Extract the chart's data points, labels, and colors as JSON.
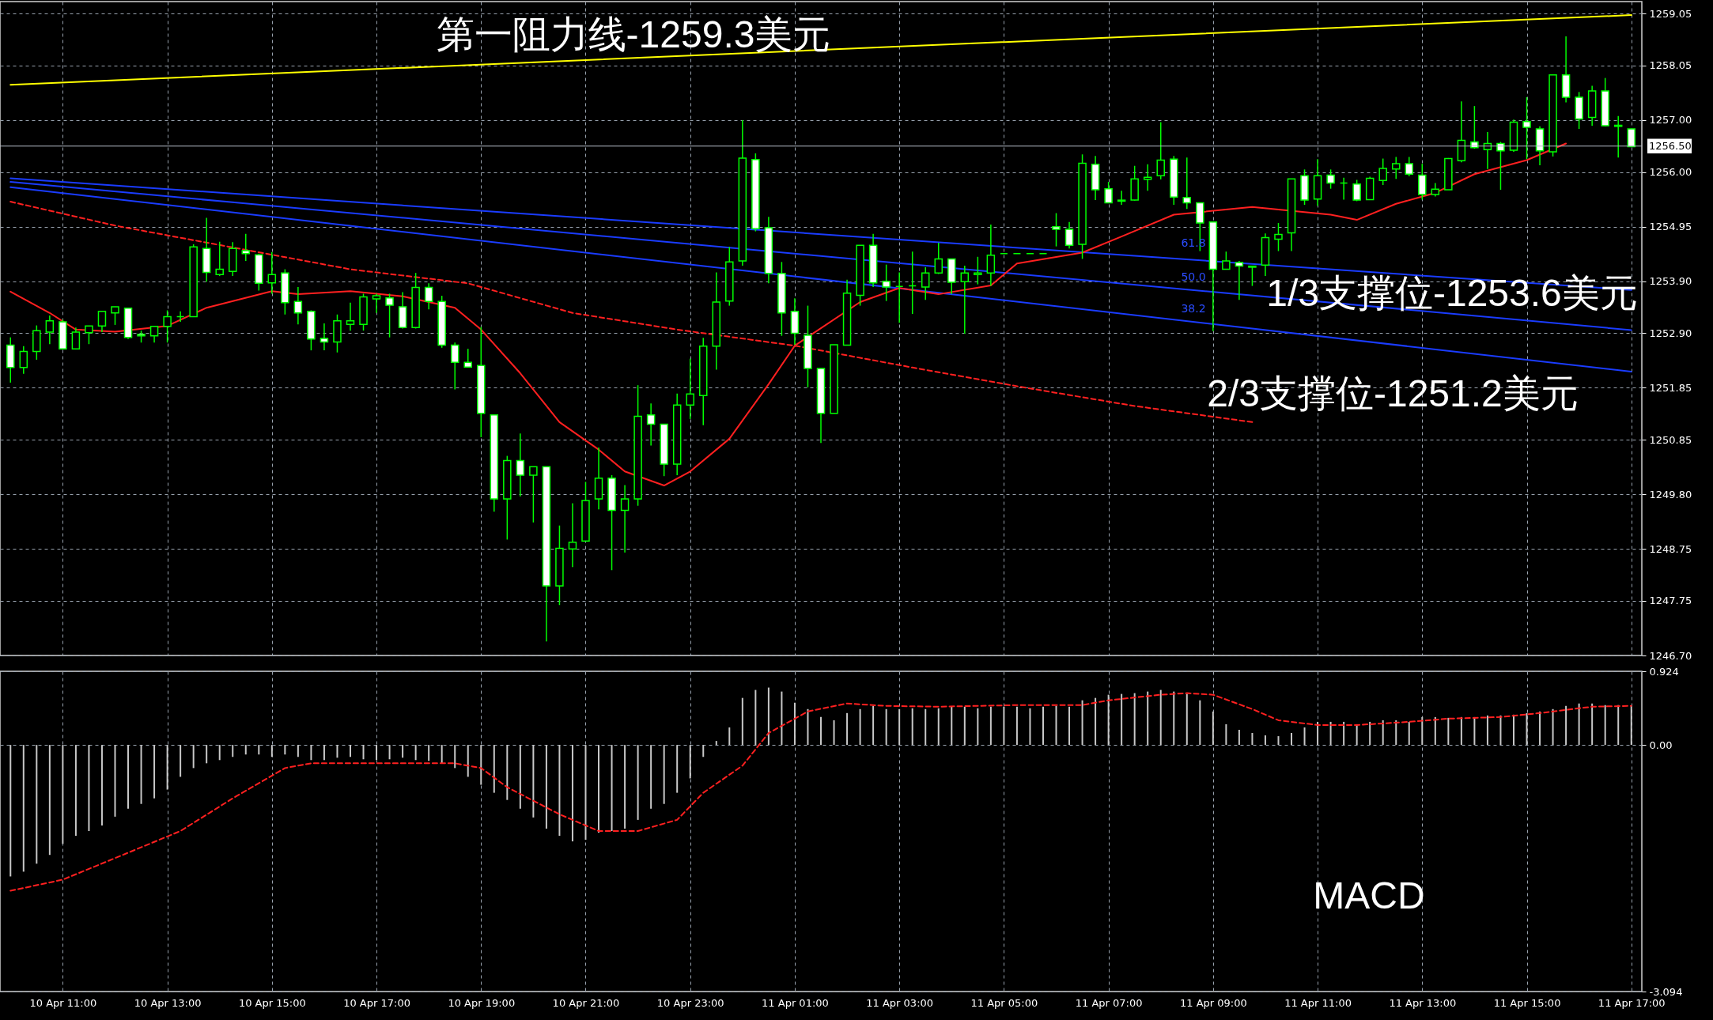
{
  "chart_data": [
    {
      "type": "candlestick",
      "categories": [
        null,
        null,
        null,
        null,
        null,
        null,
        null,
        null,
        null,
        null,
        null,
        null,
        null,
        null,
        null,
        null,
        null,
        null,
        null,
        null,
        null,
        null,
        null,
        null,
        null,
        null,
        null,
        null,
        null,
        null,
        null,
        null,
        null,
        null,
        null,
        null,
        null,
        null,
        null,
        null,
        null,
        null,
        null,
        null,
        null,
        null,
        null,
        null,
        null,
        null,
        null,
        null,
        null,
        null,
        null,
        null,
        null,
        null,
        null,
        null,
        null,
        null,
        null,
        null,
        null,
        null,
        null,
        null,
        null,
        null,
        null,
        null,
        null,
        null,
        null,
        null,
        null,
        null,
        null,
        null,
        null,
        null,
        null,
        null,
        null,
        null,
        null,
        null,
        null,
        null,
        null,
        null,
        null,
        null,
        null,
        null,
        null,
        null,
        null,
        null,
        null,
        null,
        null,
        null,
        null,
        null,
        null,
        null,
        null,
        null,
        null,
        null,
        null,
        null,
        null,
        null,
        null,
        null,
        null,
        null,
        null,
        null,
        null,
        null,
        null
      ],
      "ohlc": [
        [
          1252.67,
          1252.82,
          1251.95,
          1252.24
        ],
        [
          1252.24,
          1252.65,
          1252.12,
          1252.55
        ],
        [
          1252.55,
          1253.05,
          1252.39,
          1252.95
        ],
        [
          1252.92,
          1253.24,
          1252.69,
          1253.14
        ],
        [
          1253.12,
          1253.16,
          1252.59,
          1252.6
        ],
        [
          1252.6,
          1253.01,
          1252.59,
          1252.92
        ],
        [
          1252.91,
          1253.04,
          1252.69,
          1253.04
        ],
        [
          1253.04,
          1253.32,
          1252.92,
          1253.32
        ],
        [
          1253.29,
          1253.41,
          1253.06,
          1253.41
        ],
        [
          1253.38,
          1253.39,
          1252.79,
          1252.82
        ],
        [
          1252.88,
          1252.95,
          1252.72,
          1252.85
        ],
        [
          1252.85,
          1253.03,
          1252.72,
          1253.03
        ],
        [
          1253.03,
          1253.34,
          1252.72,
          1253.22
        ],
        [
          1253.22,
          1253.32,
          1253.12,
          1253.22
        ],
        [
          1253.22,
          1254.61,
          1253.22,
          1254.56
        ],
        [
          1254.53,
          1255.12,
          1253.89,
          1254.07
        ],
        [
          1254.03,
          1254.66,
          1254,
          1254.13
        ],
        [
          1254.09,
          1254.65,
          1254,
          1254.53
        ],
        [
          1254.49,
          1254.81,
          1254.29,
          1254.43
        ],
        [
          1254.41,
          1254.43,
          1253.72,
          1253.86
        ],
        [
          1253.87,
          1254.46,
          1253.66,
          1254.03
        ],
        [
          1254.06,
          1254.13,
          1253.26,
          1253.49
        ],
        [
          1253.51,
          1253.79,
          1253.07,
          1253.29
        ],
        [
          1253.32,
          1253.34,
          1252.57,
          1252.79
        ],
        [
          1252.8,
          1253.09,
          1252.57,
          1252.73
        ],
        [
          1252.73,
          1253.26,
          1252.53,
          1253.14
        ],
        [
          1253.07,
          1253.49,
          1252.95,
          1253.14
        ],
        [
          1253.07,
          1253.66,
          1252.95,
          1253.6
        ],
        [
          1253.56,
          1253.66,
          1253.29,
          1253.62
        ],
        [
          1253.58,
          1253.66,
          1252.82,
          1253.44
        ],
        [
          1253.41,
          1253.69,
          1252.99,
          1253.01
        ],
        [
          1253.01,
          1254.06,
          1252.99,
          1253.78
        ],
        [
          1253.78,
          1253.86,
          1253.36,
          1253.51
        ],
        [
          1253.51,
          1253.62,
          1252.62,
          1252.67
        ],
        [
          1252.67,
          1252.72,
          1251.82,
          1252.34
        ],
        [
          1252.34,
          1252.6,
          1252.25,
          1252.25
        ],
        [
          1252.28,
          1253.02,
          1250.9,
          1251.36
        ],
        [
          1251.33,
          1251.33,
          1249.47,
          1249.71
        ],
        [
          1249.71,
          1250.54,
          1248.93,
          1250.45
        ],
        [
          1250.45,
          1250.97,
          1249.76,
          1250.17
        ],
        [
          1250.17,
          1250.33,
          1249.26,
          1250.33
        ],
        [
          1250.33,
          1250.33,
          1246.97,
          1248.04
        ],
        [
          1248.04,
          1249.2,
          1247.67,
          1248.76
        ],
        [
          1248.75,
          1249.63,
          1248.4,
          1248.88
        ],
        [
          1248.9,
          1250.04,
          1248.9,
          1249.68
        ],
        [
          1249.71,
          1250.7,
          1249.51,
          1250.11
        ],
        [
          1250.11,
          1250.17,
          1248.34,
          1249.49
        ],
        [
          1249.49,
          1249.98,
          1248.68,
          1249.71
        ],
        [
          1249.71,
          1251.9,
          1249.58,
          1251.3
        ],
        [
          1251.33,
          1251.55,
          1250.74,
          1251.15
        ],
        [
          1251.15,
          1251.15,
          1250.15,
          1250.38
        ],
        [
          1250.38,
          1251.74,
          1250.17,
          1251.52
        ],
        [
          1251.52,
          1252.41,
          1251.25,
          1251.73
        ],
        [
          1251.7,
          1252.81,
          1251.13,
          1252.65
        ],
        [
          1252.65,
          1254.07,
          1252.2,
          1253.5
        ],
        [
          1253.52,
          1254.56,
          1253.43,
          1254.27
        ],
        [
          1254.29,
          1257,
          1254.2,
          1256.27
        ],
        [
          1256.24,
          1256.36,
          1254.86,
          1254.91
        ],
        [
          1254.93,
          1255.14,
          1253.86,
          1254.05
        ],
        [
          1254.05,
          1254.27,
          1252.85,
          1253.29
        ],
        [
          1253.32,
          1253.57,
          1252.68,
          1252.9
        ],
        [
          1252.86,
          1253.43,
          1251.86,
          1252.22
        ],
        [
          1252.22,
          1252.22,
          1250.79,
          1251.36
        ],
        [
          1251.36,
          1252.68,
          1251.36,
          1252.68
        ],
        [
          1252.67,
          1253.93,
          1252.67,
          1253.67
        ],
        [
          1253.63,
          1254.59,
          1253.43,
          1254.59
        ],
        [
          1254.59,
          1254.81,
          1253.79,
          1253.87
        ],
        [
          1253.9,
          1254.22,
          1253.52,
          1253.79
        ],
        [
          1253.8,
          1254.07,
          1253.1,
          1253.8
        ],
        [
          1253.81,
          1254.47,
          1253.27,
          1253.81
        ],
        [
          1253.79,
          1254.17,
          1253.54,
          1254.06
        ],
        [
          1254.06,
          1254.64,
          1254.04,
          1254.33
        ],
        [
          1254.33,
          1254.33,
          1253.65,
          1253.88
        ],
        [
          1253.89,
          1254.2,
          1252.89,
          1254.06
        ],
        [
          1254.03,
          1254.37,
          1253.84,
          1254.06
        ],
        [
          1254.06,
          1254.99,
          1253.81,
          1254.4
        ],
        [
          1254.43,
          1254.43,
          1254.43,
          1254.43
        ],
        [
          1254.43,
          1254.43,
          1254.43,
          1254.43
        ],
        [
          1254.43,
          1254.43,
          1254.43,
          1254.43
        ],
        [
          1254.43,
          1254.43,
          1254.43,
          1254.43
        ],
        [
          1254.95,
          1255.21,
          1254.57,
          1254.9
        ],
        [
          1254.9,
          1255.04,
          1254.53,
          1254.59
        ],
        [
          1254.61,
          1256.34,
          1254.33,
          1256.17
        ],
        [
          1256.15,
          1256.31,
          1255.46,
          1255.66
        ],
        [
          1255.68,
          1255.81,
          1255.4,
          1255.41
        ],
        [
          1255.44,
          1255.64,
          1255.37,
          1255.46
        ],
        [
          1255.46,
          1256.12,
          1255.45,
          1255.87
        ],
        [
          1255.86,
          1256.15,
          1255.64,
          1255.9
        ],
        [
          1255.93,
          1256.96,
          1255.86,
          1256.23
        ],
        [
          1256.25,
          1256.31,
          1255.37,
          1255.52
        ],
        [
          1255.51,
          1256.28,
          1255.29,
          1255.41
        ],
        [
          1255.41,
          1255.41,
          1254.48,
          1255.02
        ],
        [
          1255.04,
          1255.04,
          1252.94,
          1254.13
        ],
        [
          1254.13,
          1254.47,
          1254.13,
          1254.29
        ],
        [
          1254.26,
          1254.29,
          1253.54,
          1254.19
        ],
        [
          1254.19,
          1254.19,
          1253.81,
          1254.17
        ],
        [
          1254.21,
          1254.82,
          1254,
          1254.74
        ],
        [
          1254.71,
          1255.02,
          1254.48,
          1254.8
        ],
        [
          1254.83,
          1255.87,
          1254.48,
          1255.87
        ],
        [
          1255.93,
          1256.05,
          1255.37,
          1255.46
        ],
        [
          1255.48,
          1256.25,
          1255.35,
          1255.93
        ],
        [
          1255.94,
          1256.05,
          1255.68,
          1255.79
        ],
        [
          1255.79,
          1255.89,
          1255.47,
          1255.79
        ],
        [
          1255.77,
          1255.85,
          1255.44,
          1255.46
        ],
        [
          1255.47,
          1255.91,
          1255.46,
          1255.88
        ],
        [
          1255.84,
          1256.26,
          1255.75,
          1256.07
        ],
        [
          1256.06,
          1256.29,
          1255.87,
          1256.16
        ],
        [
          1256.16,
          1256.29,
          1255.92,
          1255.96
        ],
        [
          1255.94,
          1256.16,
          1255.47,
          1255.57
        ],
        [
          1255.57,
          1255.79,
          1255.53,
          1255.67
        ],
        [
          1255.66,
          1256.27,
          1255.66,
          1256.26
        ],
        [
          1256.22,
          1257.36,
          1256.19,
          1256.61
        ],
        [
          1256.58,
          1257.27,
          1256.45,
          1256.47
        ],
        [
          1256.43,
          1256.77,
          1256.06,
          1256.55
        ],
        [
          1256.55,
          1256.58,
          1255.66,
          1256.41
        ],
        [
          1256.42,
          1257.01,
          1256.39,
          1256.96
        ],
        [
          1256.97,
          1257.44,
          1256.25,
          1256.86
        ],
        [
          1256.83,
          1256.88,
          1256.13,
          1256.41
        ],
        [
          1256.39,
          1257.87,
          1256.3,
          1257.87
        ],
        [
          1257.87,
          1258.61,
          1257.34,
          1257.44
        ],
        [
          1257.44,
          1257.54,
          1256.83,
          1257.02
        ],
        [
          1257.05,
          1257.66,
          1256.89,
          1257.56
        ],
        [
          1257.56,
          1257.81,
          1256.88,
          1256.89
        ],
        [
          1256.9,
          1257.08,
          1256.28,
          1256.88
        ],
        [
          1256.83,
          1256.83,
          1256.49,
          1256.49
        ]
      ],
      "series": [
        {
          "type": "line",
          "color": "#ffff00",
          "values": [
            1257.68,
            null,
            null,
            null,
            null,
            null,
            null,
            null,
            null,
            null,
            null,
            null,
            null,
            null,
            null,
            null,
            null,
            null,
            null,
            null,
            null,
            null,
            null,
            null,
            null,
            null,
            null,
            null,
            null,
            null,
            null,
            null,
            null,
            null,
            null,
            null,
            null,
            null,
            null,
            null,
            null,
            null,
            null,
            null,
            null,
            null,
            null,
            null,
            null,
            null,
            null,
            null,
            null,
            null,
            null,
            null,
            null,
            null,
            null,
            null,
            null,
            null,
            null,
            null,
            null,
            null,
            null,
            null,
            null,
            null,
            null,
            null,
            null,
            null,
            null,
            null,
            null,
            null,
            null,
            null,
            null,
            null,
            null,
            null,
            null,
            null,
            null,
            null,
            null,
            null,
            null,
            null,
            null,
            null,
            null,
            null,
            null,
            null,
            null,
            null,
            null,
            null,
            null,
            null,
            null,
            null,
            null,
            null,
            null,
            null,
            null,
            null,
            null,
            null,
            null,
            null,
            null,
            null,
            null,
            null,
            null,
            null,
            null,
            null,
            1259.02
          ]
        },
        {
          "type": "line",
          "color": "#1a3cff",
          "values": [
            1255.88,
            null,
            null,
            null,
            null,
            null,
            null,
            null,
            null,
            null,
            null,
            null,
            null,
            null,
            null,
            null,
            null,
            null,
            null,
            null,
            null,
            null,
            null,
            null,
            null,
            null,
            null,
            null,
            null,
            null,
            null,
            null,
            null,
            null,
            null,
            null,
            null,
            null,
            null,
            null,
            null,
            null,
            null,
            null,
            null,
            null,
            null,
            null,
            null,
            null,
            null,
            null,
            null,
            null,
            null,
            null,
            null,
            null,
            null,
            null,
            null,
            null,
            null,
            null,
            null,
            null,
            null,
            null,
            null,
            null,
            null,
            null,
            null,
            null,
            null,
            null,
            null,
            null,
            null,
            null,
            null,
            null,
            null,
            null,
            null,
            null,
            null,
            null,
            null,
            null,
            null,
            null,
            null,
            null,
            null,
            null,
            null,
            null,
            null,
            null,
            null,
            null,
            null,
            null,
            null,
            null,
            null,
            null,
            null,
            null,
            null,
            null,
            null,
            null,
            null,
            null,
            null,
            null,
            null,
            null,
            null,
            null,
            null,
            null,
            1253.73
          ]
        },
        {
          "type": "line",
          "color": "#1a3cff",
          "values": [
            1255.81,
            null,
            null,
            null,
            null,
            null,
            null,
            null,
            null,
            null,
            null,
            null,
            null,
            null,
            null,
            null,
            null,
            null,
            null,
            null,
            null,
            null,
            null,
            null,
            null,
            null,
            null,
            null,
            null,
            null,
            null,
            null,
            null,
            null,
            null,
            null,
            null,
            null,
            null,
            null,
            null,
            null,
            null,
            null,
            null,
            null,
            null,
            null,
            null,
            null,
            null,
            null,
            null,
            null,
            null,
            null,
            null,
            null,
            null,
            null,
            null,
            null,
            null,
            null,
            null,
            null,
            null,
            null,
            null,
            null,
            null,
            null,
            null,
            null,
            null,
            null,
            null,
            null,
            null,
            null,
            null,
            null,
            null,
            null,
            null,
            null,
            null,
            null,
            null,
            null,
            null,
            null,
            null,
            null,
            null,
            null,
            null,
            null,
            null,
            null,
            null,
            null,
            null,
            null,
            null,
            null,
            null,
            null,
            null,
            null,
            null,
            null,
            null,
            null,
            null,
            null,
            null,
            null,
            null,
            null,
            null,
            null,
            null,
            null,
            1252.96
          ]
        },
        {
          "type": "line",
          "color": "#1a3cff",
          "values": [
            1255.71,
            null,
            null,
            null,
            null,
            null,
            null,
            null,
            null,
            null,
            null,
            null,
            null,
            null,
            null,
            null,
            null,
            null,
            null,
            null,
            null,
            null,
            null,
            null,
            null,
            null,
            null,
            null,
            null,
            null,
            null,
            null,
            null,
            null,
            null,
            null,
            null,
            null,
            null,
            null,
            null,
            null,
            null,
            null,
            null,
            null,
            null,
            null,
            null,
            null,
            null,
            null,
            null,
            null,
            null,
            null,
            null,
            null,
            null,
            null,
            null,
            null,
            null,
            null,
            null,
            null,
            null,
            null,
            null,
            null,
            null,
            null,
            null,
            null,
            null,
            null,
            null,
            null,
            null,
            null,
            null,
            null,
            null,
            null,
            null,
            null,
            null,
            null,
            null,
            null,
            null,
            null,
            null,
            null,
            null,
            null,
            null,
            null,
            null,
            null,
            null,
            null,
            null,
            null,
            null,
            null,
            null,
            null,
            null,
            null,
            null,
            null,
            null,
            null,
            null,
            null,
            null,
            null,
            null,
            null,
            null,
            null,
            null,
            null,
            1252.16
          ]
        },
        {
          "type": "line",
          "color": "#ff2020",
          "values": [
            1253.7,
            null,
            null,
            1253.29,
            null,
            1252.97,
            null,
            null,
            1252.93,
            null,
            null,
            null,
            1253.04,
            null,
            null,
            1253.39,
            null,
            null,
            null,
            null,
            1253.71,
            null,
            1253.65,
            null,
            null,
            null,
            1253.71,
            null,
            null,
            null,
            1253.61,
            null,
            null,
            null,
            1253.39,
            null,
            1252.97,
            null,
            null,
            1252.13,
            null,
            null,
            1251.19,
            null,
            null,
            1250.66,
            null,
            1250.24,
            null,
            null,
            1249.97,
            null,
            1250.24,
            null,
            null,
            1250.87,
            null,
            null,
            1251.92,
            null,
            1252.66,
            null,
            null,
            null,
            null,
            1253.5,
            null,
            null,
            1253.77,
            null,
            null,
            1253.65,
            null,
            null,
            null,
            1253.82,
            null,
            1254.24,
            null,
            null,
            null,
            null,
            1254.45,
            null,
            null,
            1254.76,
            null,
            null,
            null,
            1255.18,
            null,
            null,
            null,
            null,
            null,
            1255.33,
            null,
            null,
            null,
            null,
            null,
            1255.18,
            null,
            1255.08,
            null,
            null,
            1255.39,
            null,
            null,
            1255.6,
            null,
            null,
            1255.96,
            null,
            null,
            null,
            1256.23,
            null,
            null,
            1256.55,
            null,
            null,
            null,
            null,
            null
          ]
        },
        {
          "type": "line",
          "color": "#ff2020",
          "line_style": "dashed",
          "values": [
            1255.43,
            null,
            null,
            null,
            null,
            null,
            null,
            null,
            1254.97,
            null,
            null,
            null,
            null,
            null,
            null,
            null,
            null,
            null,
            null,
            null,
            null,
            null,
            null,
            null,
            null,
            null,
            1254.13,
            null,
            null,
            null,
            null,
            null,
            null,
            null,
            null,
            1253.86,
            null,
            null,
            null,
            null,
            null,
            null,
            null,
            1253.29,
            null,
            null,
            null,
            null,
            null,
            null,
            null,
            1252.97,
            null,
            null,
            null,
            null,
            null,
            null,
            null,
            null,
            1252.66,
            null,
            null,
            null,
            null,
            null,
            null,
            null,
            null,
            1252.24,
            null,
            null,
            null,
            null,
            null,
            null,
            null,
            1251.88,
            null,
            null,
            null,
            null,
            null,
            null,
            null,
            null,
            1251.5,
            null,
            null,
            null,
            null,
            null,
            null,
            null,
            null,
            1251.19,
            null,
            null,
            null,
            null,
            null,
            null,
            null,
            null,
            null,
            null,
            null,
            null,
            null,
            null,
            null,
            null,
            null,
            null,
            null,
            null,
            null,
            null,
            null,
            null,
            null,
            null,
            null,
            null,
            null
          ]
        }
      ],
      "ylim": [
        1246.7,
        1259.28
      ],
      "yticks": [
        {
          "value": 1259.05,
          "label": "1259.05"
        },
        {
          "value": 1258.05,
          "label": "1258.05"
        },
        {
          "value": 1257,
          "label": "1257.00"
        },
        {
          "value": 1256,
          "label": "1256.00"
        },
        {
          "value": 1254.95,
          "label": "1254.95"
        },
        {
          "value": 1253.9,
          "label": "1253.90"
        },
        {
          "value": 1252.9,
          "label": "1252.90"
        },
        {
          "value": 1251.85,
          "label": "1251.85"
        },
        {
          "value": 1250.85,
          "label": "1250.85"
        },
        {
          "value": 1249.8,
          "label": "1249.80"
        },
        {
          "value": 1248.75,
          "label": "1248.75"
        },
        {
          "value": 1247.75,
          "label": "1247.75"
        },
        {
          "value": 1246.7,
          "label": "1246.70"
        }
      ],
      "grid": true,
      "tick_labels": "y",
      "ref_lines": [
        {
          "axis": "y",
          "value": 1256.5,
          "label": "1256.50",
          "color": "#b4bcc8"
        }
      ],
      "annotations": [
        "第一阻力线-1259.3美元",
        "1/3支撑位-1253.6美元",
        "2/3支撑位-1251.2美元",
        "61.8",
        "50.0",
        "38.2"
      ]
    },
    {
      "type": "bar",
      "categories": [
        null,
        null,
        null,
        null,
        "10 Apr 11:00",
        null,
        null,
        null,
        null,
        null,
        null,
        null,
        "10 Apr 13:00",
        null,
        null,
        null,
        null,
        null,
        null,
        null,
        "10 Apr 15:00",
        null,
        null,
        null,
        null,
        null,
        null,
        null,
        "10 Apr 17:00",
        null,
        null,
        null,
        null,
        null,
        null,
        null,
        "10 Apr 19:00",
        null,
        null,
        null,
        null,
        null,
        null,
        null,
        "10 Apr 21:00",
        null,
        null,
        null,
        null,
        null,
        null,
        null,
        "10 Apr 23:00",
        null,
        null,
        null,
        null,
        null,
        null,
        null,
        "11 Apr 01:00",
        null,
        null,
        null,
        null,
        null,
        null,
        null,
        "11 Apr 03:00",
        null,
        null,
        null,
        null,
        null,
        null,
        null,
        "11 Apr 05:00",
        null,
        null,
        null,
        null,
        null,
        null,
        null,
        "11 Apr 07:00",
        null,
        null,
        null,
        null,
        null,
        null,
        null,
        "11 Apr 09:00",
        null,
        null,
        null,
        null,
        null,
        null,
        null,
        "11 Apr 11:00",
        null,
        null,
        null,
        null,
        null,
        null,
        null,
        "11 Apr 13:00",
        null,
        null,
        null,
        null,
        null,
        null,
        null,
        "11 Apr 15:00",
        null,
        null,
        null,
        null,
        null,
        null,
        null,
        "11 Apr 17:00"
      ],
      "series": [
        {
          "type": "bar",
          "color": "#c8c8c8",
          "values": [
            -1.65,
            -1.59,
            -1.49,
            -1.38,
            -1.24,
            -1.14,
            -1.08,
            -1.01,
            -0.9,
            -0.8,
            -0.74,
            -0.67,
            -0.56,
            -0.4,
            -0.29,
            -0.23,
            -0.19,
            -0.15,
            -0.12,
            -0.12,
            -0.15,
            -0.12,
            -0.15,
            -0.19,
            -0.19,
            -0.16,
            -0.15,
            -0.18,
            -0.19,
            -0.18,
            -0.16,
            -0.19,
            -0.2,
            -0.23,
            -0.29,
            -0.4,
            -0.5,
            -0.6,
            -0.69,
            -0.8,
            -0.91,
            -1.05,
            -1.14,
            -1.21,
            -1.19,
            -1.1,
            -1.08,
            -1.05,
            -0.94,
            -0.8,
            -0.74,
            -0.6,
            -0.42,
            -0.15,
            0.05,
            0.22,
            0.59,
            0.69,
            0.72,
            0.67,
            0.53,
            0.45,
            0.35,
            0.31,
            0.4,
            0.45,
            0.49,
            0.45,
            0.45,
            0.46,
            0.45,
            0.46,
            0.48,
            0.48,
            0.46,
            0.48,
            0.48,
            0.48,
            0.46,
            0.48,
            0.49,
            0.48,
            0.56,
            0.59,
            0.63,
            0.64,
            0.65,
            0.67,
            0.69,
            0.67,
            0.64,
            0.56,
            0.42,
            0.26,
            0.19,
            0.15,
            0.12,
            0.11,
            0.15,
            0.22,
            0.29,
            0.29,
            0.29,
            0.26,
            0.29,
            0.31,
            0.31,
            0.29,
            0.35,
            0.35,
            0.34,
            0.35,
            0.35,
            0.37,
            0.37,
            0.38,
            0.4,
            0.42,
            0.45,
            0.49,
            0.52,
            0.52,
            0.5,
            0.5,
            0.49
          ]
        },
        {
          "type": "line",
          "color": "#ff2020",
          "line_style": "dashed",
          "values": [
            -1.83,
            null,
            null,
            null,
            -1.69,
            null,
            null,
            null,
            -1.42,
            null,
            null,
            null,
            null,
            -1.08,
            null,
            null,
            null,
            -0.67,
            null,
            null,
            null,
            -0.29,
            null,
            -0.23,
            null,
            null,
            null,
            null,
            null,
            null,
            -0.23,
            null,
            null,
            null,
            -0.23,
            null,
            -0.29,
            null,
            -0.53,
            null,
            null,
            null,
            -0.87,
            null,
            null,
            -1.08,
            null,
            null,
            -1.08,
            null,
            null,
            -0.94,
            null,
            -0.6,
            null,
            null,
            -0.26,
            null,
            0.15,
            null,
            null,
            0.42,
            null,
            null,
            0.52,
            null,
            null,
            0.49,
            null,
            null,
            null,
            0.48,
            null,
            null,
            0.49,
            null,
            null,
            0.5,
            null,
            null,
            null,
            null,
            0.5,
            null,
            0.56,
            null,
            null,
            null,
            0.63,
            null,
            0.65,
            null,
            0.63,
            null,
            null,
            0.45,
            null,
            0.31,
            null,
            null,
            0.25,
            null,
            null,
            0.25,
            null,
            null,
            null,
            0.29,
            null,
            null,
            0.33,
            null,
            null,
            null,
            0.35,
            null,
            null,
            0.4,
            null,
            null,
            null,
            0.48,
            null,
            null,
            0.49
          ]
        }
      ],
      "ylim": [
        -3.094,
        0.924
      ],
      "yticks": [
        {
          "value": 0.924,
          "label": "0.924"
        },
        {
          "value": 0,
          "label": "0.00"
        },
        {
          "value": -3.094,
          "label": "-3.094"
        }
      ],
      "grid": true,
      "annotations": [
        "MACD"
      ]
    }
  ]
}
